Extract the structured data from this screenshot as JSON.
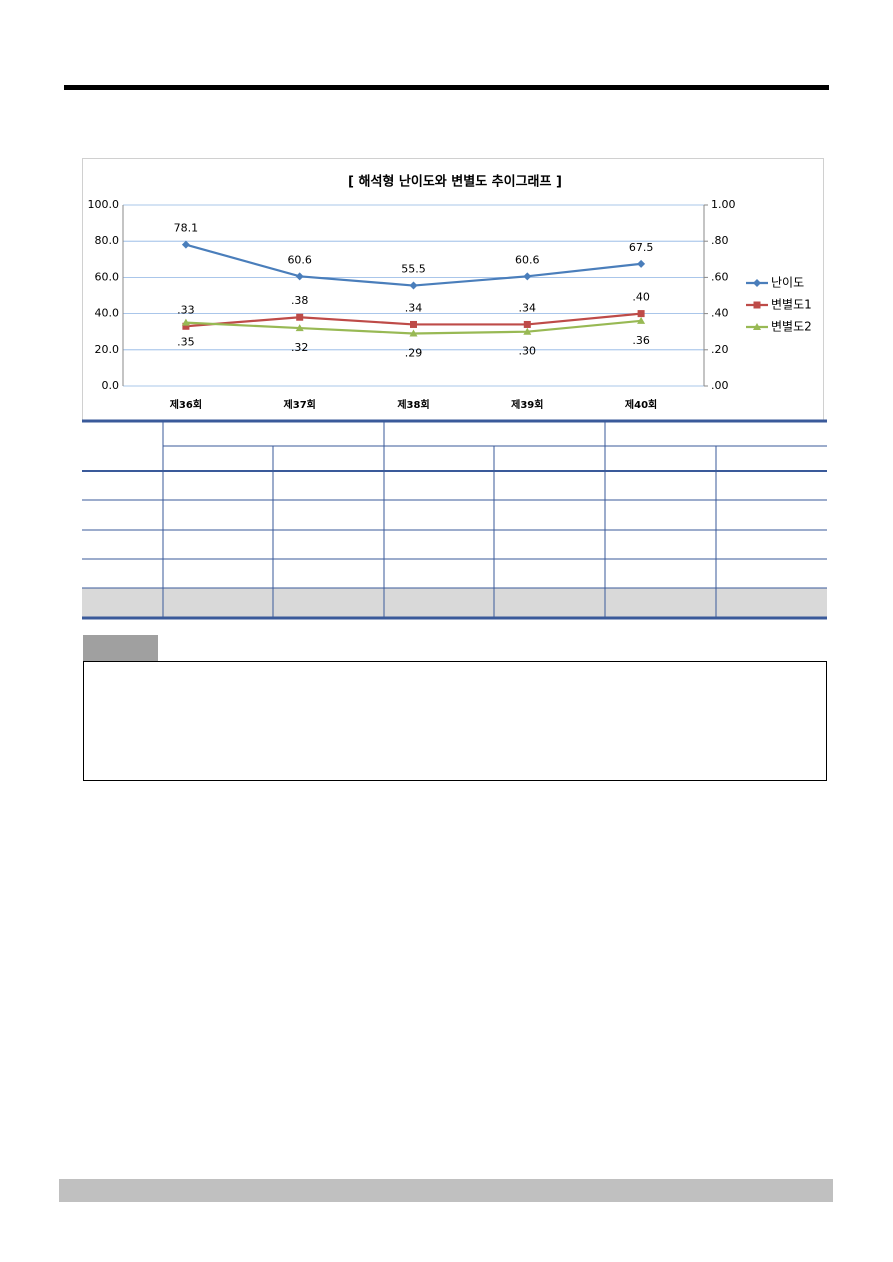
{
  "chart_data": {
    "type": "line",
    "title": "[ 해석형 난이도와 변별도 추이그래프 ]",
    "categories": [
      "제36회",
      "제37회",
      "제38회",
      "제39회",
      "제40회"
    ],
    "series": [
      {
        "name": "난이도",
        "color": "#4a7ebb",
        "marker": "diamond",
        "values": [
          78.1,
          60.6,
          55.5,
          60.6,
          67.5
        ]
      },
      {
        "name": "변별도1",
        "color": "#be4b48",
        "marker": "square",
        "axis": "y2",
        "values": [
          0.33,
          0.38,
          0.34,
          0.34,
          0.4
        ],
        "value_labels": [
          ".33",
          ".38",
          ".34",
          ".34",
          ".40"
        ]
      },
      {
        "name": "변별도2",
        "color": "#98b954",
        "marker": "triangle",
        "axis": "y2",
        "values": [
          0.35,
          0.32,
          0.29,
          0.3,
          0.36
        ],
        "value_labels": [
          ".35",
          ".32",
          ".29",
          ".30",
          ".36"
        ]
      }
    ],
    "ylim": [
      0,
      100
    ],
    "yticks": [
      {
        "value": 0,
        "label": "0.0"
      },
      {
        "value": 20,
        "label": "20.0"
      },
      {
        "value": 40,
        "label": "40.0"
      },
      {
        "value": 60,
        "label": "60.0"
      },
      {
        "value": 80,
        "label": "80.0"
      },
      {
        "value": 100,
        "label": "100.0"
      }
    ],
    "y2lim": [
      0,
      1
    ],
    "y2ticks": [
      {
        "value": 0,
        "label": ".00"
      },
      {
        "value": 0.2,
        "label": ".20"
      },
      {
        "value": 0.4,
        "label": ".40"
      },
      {
        "value": 0.6,
        "label": ".60"
      },
      {
        "value": 0.8,
        "label": ".80"
      },
      {
        "value": 1,
        "label": "1.00"
      }
    ],
    "grid": true,
    "legend": "right"
  }
}
